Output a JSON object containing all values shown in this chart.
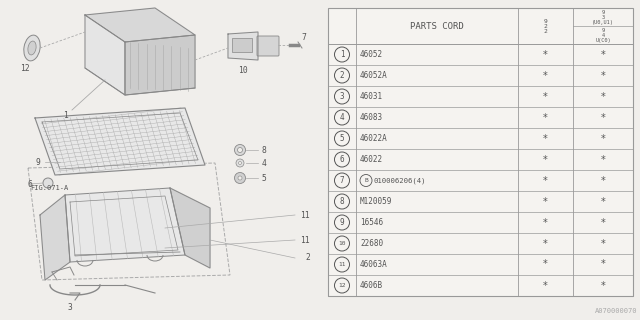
{
  "watermark": "A070000070",
  "fig_ref": "FIG.071-A",
  "bg_color": "#f0eeeb",
  "line_color": "#999999",
  "text_color": "#555555",
  "table_bg": "#f5f3f0",
  "rows": [
    {
      "num": "1",
      "part": "46052"
    },
    {
      "num": "2",
      "part": "46052A"
    },
    {
      "num": "3",
      "part": "46031"
    },
    {
      "num": "4",
      "part": "46083"
    },
    {
      "num": "5",
      "part": "46022A"
    },
    {
      "num": "6",
      "part": "46022"
    },
    {
      "num": "7",
      "part": "010006206(4)",
      "b_prefix": true
    },
    {
      "num": "8",
      "part": "M120059"
    },
    {
      "num": "9",
      "part": "16546"
    },
    {
      "num": "10",
      "part": "22680"
    },
    {
      "num": "11",
      "part": "46063A"
    },
    {
      "num": "12",
      "part": "4606B"
    }
  ]
}
